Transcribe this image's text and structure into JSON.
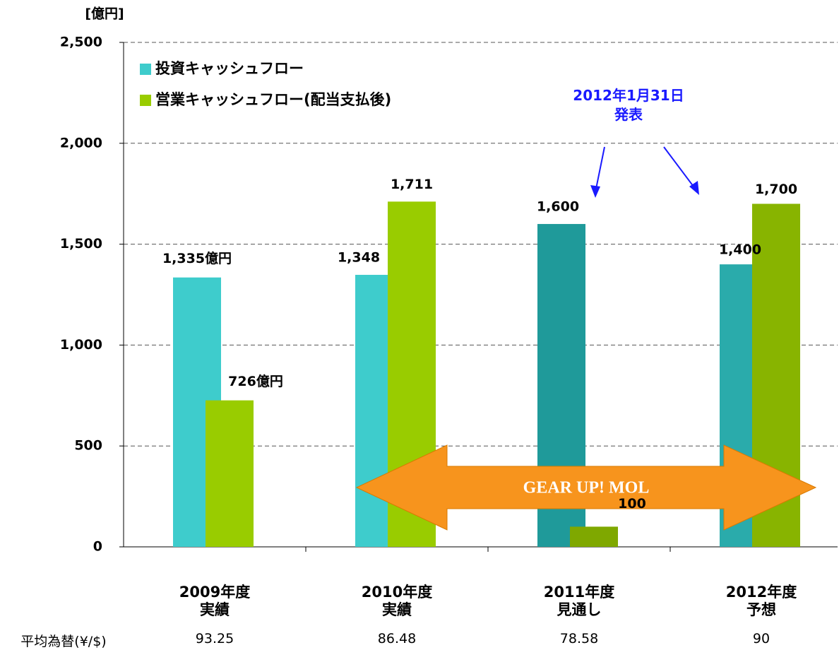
{
  "chart_data": {
    "type": "bar",
    "unit_label": "[億円]",
    "categories": [
      "2009年度\n実績",
      "2010年度\n実績",
      "2011年度\n見通し",
      "2012年度\n予想"
    ],
    "series": [
      {
        "name": "投資キャッシュフロー",
        "color": "#3ecccc",
        "colors": [
          "#3ecccc",
          "#3ecccc",
          "#1f9a9a",
          "#2aabab"
        ],
        "values": [
          1335,
          1348,
          1600,
          1400
        ],
        "value_labels": [
          "1,335億円",
          "1,348",
          "1,600",
          "1,400"
        ]
      },
      {
        "name": "営業キャッシュフロー(配当支払後)",
        "color": "#99cc00",
        "colors": [
          "#99cc00",
          "#99cc00",
          "#7fa800",
          "#88b400"
        ],
        "values": [
          726,
          1711,
          100,
          1700
        ],
        "value_labels": [
          "726億円",
          "1,711",
          "100",
          "1,700"
        ]
      }
    ],
    "ylim": [
      0,
      2500
    ],
    "yticks": [
      0,
      500,
      {
        "value": 1000,
        "label": "1,000"
      },
      {
        "value": 1500,
        "label": "1,500"
      },
      {
        "value": 2000,
        "label": "2,000"
      },
      {
        "value": 2500,
        "label": "2,500"
      }
    ],
    "grid": true,
    "legend": "upper left",
    "annotation": "2012年1月31日\n発表",
    "banner": "GEAR UP! MOL",
    "fx_label": "平均為替(¥/$)",
    "fx_values": [
      "93.25",
      "86.48",
      "78.58",
      "90"
    ]
  }
}
